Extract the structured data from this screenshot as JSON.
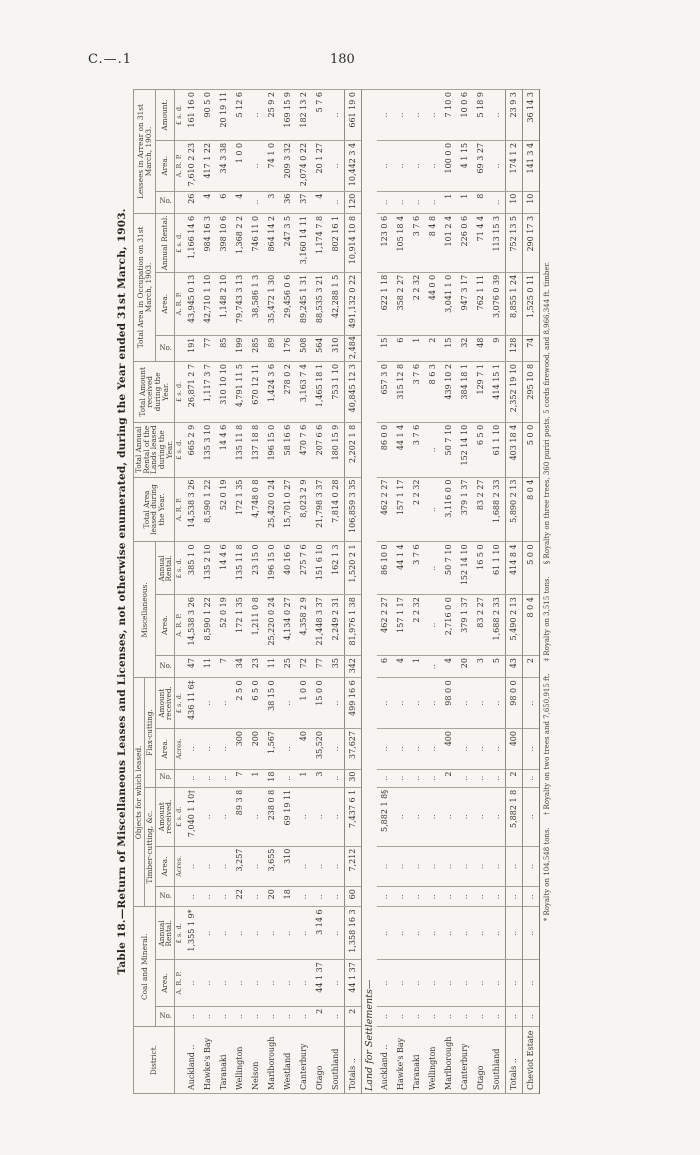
{
  "page": {
    "doc_ref": "C.—.1",
    "page_number": "180"
  },
  "table": {
    "title": "Table 18.—Return of Miscellaneous Leases and Licenses, not otherwise enumerated, during the Year ended 31st March, 1903.",
    "header_rows": [
      [
        {
          "t": "District.",
          "cs": 1,
          "rs": 3
        },
        {
          "t": "Coal and Mineral.",
          "cs": 3,
          "rs": 2
        },
        {
          "t": "Objects for which leased.",
          "cs": 6,
          "rs": 1
        },
        {
          "t": "Miscellaneous.",
          "cs": 3,
          "rs": 2
        },
        {
          "t": "Total Area leased during the Year.",
          "cs": 1,
          "rs": 3
        },
        {
          "t": "Total Annual Rental of the Lands leased during the Year.",
          "cs": 1,
          "rs": 3
        },
        {
          "t": "Total Amount received during the Year.",
          "cs": 1,
          "rs": 3
        },
        {
          "t": "Total Area in Occupation on 31st March, 1903.",
          "cs": 3,
          "rs": 2
        },
        {
          "t": "Lessees in Arrear on 31st March, 1903.",
          "cs": 3,
          "rs": 2
        }
      ],
      [
        {
          "t": "Timber-cutting, &c.",
          "cs": 3,
          "rs": 1
        },
        {
          "t": "Flax-cutting.",
          "cs": 3,
          "rs": 1
        }
      ],
      [
        {
          "t": "No.",
          "v": 1
        },
        {
          "t": "Area."
        },
        {
          "t": "Annual Rental."
        },
        {
          "t": "No.",
          "v": 1
        },
        {
          "t": "Area."
        },
        {
          "t": "Amount received."
        },
        {
          "t": "No.",
          "v": 1
        },
        {
          "t": "Area."
        },
        {
          "t": "Amount received."
        },
        {
          "t": "No.",
          "v": 1
        },
        {
          "t": "Area."
        },
        {
          "t": "Annual Rental."
        },
        {
          "t": "No.",
          "v": 1
        },
        {
          "t": "Area."
        },
        {
          "t": "Annual Rental."
        },
        {
          "t": "No.",
          "v": 1
        },
        {
          "t": "Area."
        },
        {
          "t": "Amount."
        }
      ]
    ],
    "units_row": [
      "",
      "",
      "A. R. P.",
      "£ s. d.",
      "",
      "Acres.",
      "£ s. d.",
      "",
      "Acres.",
      "£ s. d.",
      "",
      "A. R. P.",
      "£ s. d.",
      "A. R. P.",
      "£ s. d.",
      "£ s. d.",
      "",
      "A. R. P.",
      "£ s. d.",
      "",
      "A. R. P.",
      "£ s. d."
    ],
    "main_rows": [
      [
        "Auckland ..",
        "..",
        "..",
        "1,355 1 9*",
        "..",
        "..",
        "7,040 1 10†",
        "..",
        "..",
        "436 11 6‡",
        "47",
        "14,538 3 26",
        "385 1 0",
        "14,538 3 26",
        "665 2 9",
        "26,871 2 7",
        "191",
        "43,945 0 13",
        "1,166 14 6",
        "26",
        "7,610 2 23",
        "161 16 0"
      ],
      [
        "Hawke's Bay",
        "..",
        "..",
        "..",
        "..",
        "..",
        "..",
        "..",
        "..",
        "..",
        "11",
        "8,590 1 22",
        "135 2 10",
        "8,590 1 22",
        "135 3 10",
        "1,117 3 7",
        "77",
        "42,710 1 10",
        "984 16 3",
        "4",
        "417 1 22",
        "90 5 0"
      ],
      [
        "Taranaki",
        "..",
        "..",
        "..",
        "..",
        "..",
        "..",
        "..",
        "..",
        "..",
        "7",
        "52 0 19",
        "14 4 6",
        "52 0 19",
        "14 4 6",
        "310 10 10",
        "85",
        "1,148 2 10",
        "398 10 6",
        "6",
        "34 3 38",
        "20 19 11"
      ],
      [
        "Wellington",
        "..",
        "..",
        "..",
        "22",
        "3,257",
        "89 3 8",
        "7",
        "300",
        "2 5 0",
        "34",
        "172 1 35",
        "135 11 8",
        "172 1 35",
        "135 11 8",
        "4,791 11 5",
        "199",
        "79,743 3 13",
        "1,368 2 2",
        "4",
        "1 0 0",
        "5 12 6"
      ],
      [
        "Nelson",
        "..",
        "..",
        "..",
        "..",
        "..",
        "..",
        "1",
        "200",
        "6 5 0",
        "23",
        "1,211 0 8",
        "23 15 0",
        "4,748 0 8",
        "137 18 8",
        "670 12 11",
        "285",
        "38,586 1 3",
        "746 11 0",
        "..",
        "..",
        ".."
      ],
      [
        "Marlborough",
        "..",
        "..",
        "..",
        "20",
        "3,655",
        "238 0 8",
        "18",
        "1,567",
        "38 15 0",
        "11",
        "25,220 0 24",
        "196 15 0",
        "25,420 0 24",
        "196 15 0",
        "1,424 3 6",
        "89",
        "35,472 1 30",
        "864 14 2",
        "3",
        "74 1 0",
        "25 9 2"
      ],
      [
        "Westland",
        "..",
        "..",
        "..",
        "18",
        "310",
        "69 19 11",
        "..",
        "..",
        "..",
        "25",
        "4,134 0 27",
        "40 16 6",
        "15,701 0 27",
        "58 16 6",
        "278 0 2",
        "176",
        "29,456 0 6",
        "247 3 5",
        "36",
        "209 3 32",
        "169 15 9"
      ],
      [
        "Canterbury",
        "..",
        "..",
        "..",
        "..",
        "..",
        "..",
        "1",
        "40",
        "1 0 0",
        "72",
        "4,358 2 9",
        "275 7 6",
        "8,023 2 9",
        "470 7 6",
        "3,163 7 4",
        "508",
        "89,245 1 31",
        "3,160 14 11",
        "37",
        "2,074 0 22",
        "182 13 2"
      ],
      [
        "Otago",
        "2",
        "44 1 37",
        "3 14 6",
        "..",
        "..",
        "..",
        "3",
        "35,520",
        "15 0 0",
        "77",
        "21,448 3 37",
        "151 6 10",
        "21,798 3 37",
        "207 6 6",
        "1,465 18 1",
        "564",
        "88,535 3 21",
        "1,174 7 8",
        "4",
        "20 1 27",
        "5 7 6"
      ],
      [
        "Southland",
        "..",
        "..",
        "..",
        "..",
        "..",
        "..",
        "..",
        "..",
        "..",
        "35",
        "2,249 2 31",
        "162 1 3",
        "7,814 0 28",
        "180 15 9",
        "753 1 10",
        "310",
        "42,288 1 5",
        "802 16 1",
        "..",
        "..",
        ".."
      ]
    ],
    "main_totals": [
      "Totals ..",
      "2",
      "44 1 37",
      "1,358 16 3",
      "60",
      "7,212",
      "7,437 6 1",
      "30",
      "37,627",
      "499 16 6",
      "342",
      "81,976 1 38",
      "1,520 2 1",
      "106,859 3 35",
      "2,202 1 8",
      "40,845 12 3",
      "2,484",
      "491,132 0 22",
      "10,914 10 8",
      "120",
      "10,442 3 4",
      "661 19 0"
    ],
    "section_label": "Land for Settlements—",
    "lfs_rows": [
      [
        "Auckland ..",
        "..",
        "..",
        "..",
        "..",
        "..",
        "5,882 1 8§",
        "..",
        "..",
        "..",
        "6",
        "462 2 27",
        "86 10 0",
        "462 2 27",
        "86 0 0",
        "657 3 0",
        "15",
        "622 1 18",
        "123 0 6",
        "..",
        "..",
        ".."
      ],
      [
        "Hawke's Bay",
        "..",
        "..",
        "..",
        "..",
        "..",
        "..",
        "..",
        "..",
        "..",
        "4",
        "157 1 17",
        "44 1 4",
        "157 1 17",
        "44 1 4",
        "315 12 8",
        "6",
        "358 2 27",
        "105 18 4",
        "..",
        "..",
        ".."
      ],
      [
        "Taranaki",
        "..",
        "..",
        "..",
        "..",
        "..",
        "..",
        "..",
        "..",
        "..",
        "1",
        "2 2 32",
        "3 7 6",
        "2 2 32",
        "3 7 6",
        "3 7 6",
        "1",
        "2 2 32",
        "3 7 6",
        "..",
        "..",
        ".."
      ],
      [
        "Wellington",
        "..",
        "..",
        "..",
        "..",
        "..",
        "..",
        "..",
        "..",
        "..",
        "..",
        "..",
        "..",
        "..",
        "..",
        "8 6 3",
        "2",
        "44 0 0",
        "8 4 8",
        "..",
        "..",
        ".."
      ],
      [
        "Marlborough",
        "..",
        "..",
        "..",
        "..",
        "..",
        "..",
        "2",
        "400",
        "98 0 0",
        "4",
        "2,716 0 0",
        "50 7 10",
        "3,116 0 0",
        "50 7 10",
        "439 10 2",
        "15",
        "3,041 1 0",
        "101 2 4",
        "1",
        "100 0 0",
        "7 10 0"
      ],
      [
        "Canterbury",
        "..",
        "..",
        "..",
        "..",
        "..",
        "..",
        "..",
        "..",
        "..",
        "20",
        "379 1 37",
        "152 14 10",
        "379 1 37",
        "152 14 10",
        "384 18 1",
        "32",
        "947 3 17",
        "226 0 6",
        "1",
        "4 1 15",
        "10 0 6"
      ],
      [
        "Otago",
        "..",
        "..",
        "..",
        "..",
        "..",
        "..",
        "..",
        "..",
        "..",
        "3",
        "83 2 27",
        "16 5 0",
        "83 2 27",
        "6 5 0",
        "129 7 1",
        "48",
        "762 1 11",
        "71 4 4",
        "8",
        "69 3 27",
        "5 18 9"
      ],
      [
        "Southland",
        "..",
        "..",
        "..",
        "..",
        "..",
        "..",
        "..",
        "..",
        "..",
        "5",
        "1,688 2 33",
        "61 1 10",
        "1,688 2 33",
        "61 1 10",
        "414 15 1",
        "9",
        "3,076 0 39",
        "113 15 3",
        "..",
        "..",
        ".."
      ]
    ],
    "lfs_totals": [
      "Totals ..",
      "..",
      "..",
      "..",
      "..",
      "..",
      "5,882 1 8",
      "2",
      "400",
      "98 0 0",
      "43",
      "5,490 2 13",
      "414 8 4",
      "5,890 2 13",
      "403 18 4",
      "2,352 19 10",
      "128",
      "8,855 1 24",
      "752 13 5",
      "10",
      "174 1 2",
      "23 9 3"
    ],
    "cheviot_row": [
      "Cheviot Estate",
      "..",
      "..",
      "..",
      "..",
      "..",
      "..",
      "..",
      "..",
      "..",
      "2",
      "8 0 4",
      "5 0 0",
      "8 0 4",
      "5 0 0",
      "295 10 8",
      "74",
      "1,525 0 11",
      "290 17 3",
      "10",
      "141 3 4",
      "36 14 3"
    ],
    "footnotes": [
      "* Royalty on 104,548 tons.",
      "† Royalty on two trees and 7,650,915 ft.",
      "‡ Royalty on 3,515 tons.",
      "§ Royalty on three trees, 360 puriri posts, 5 cords firewood, and 8,966,344 ft. timber."
    ]
  }
}
